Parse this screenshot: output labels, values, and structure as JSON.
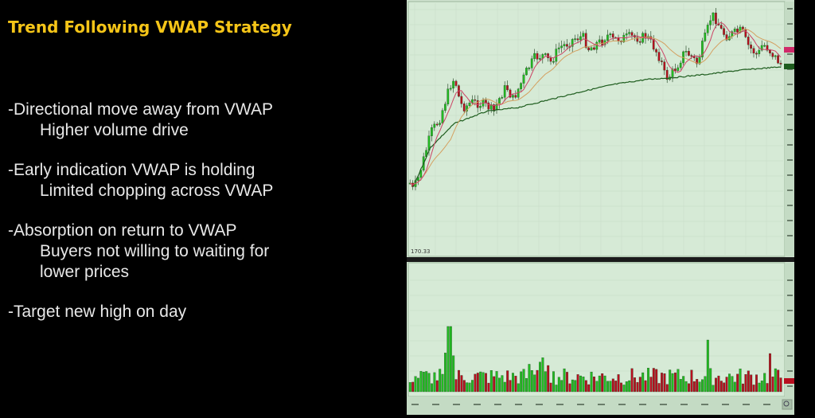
{
  "slide": {
    "title": "Trend Following VWAP Strategy",
    "bullets": [
      {
        "main": "-Directional move away from VWAP",
        "sub": [
          "Higher volume drive"
        ]
      },
      {
        "main": "-Early indication VWAP is holding",
        "sub": [
          "Limited chopping across VWAP"
        ]
      },
      {
        "main": "-Absorption on return to VWAP",
        "sub": [
          "Buyers not willing to waiting for",
          "lower prices"
        ]
      },
      {
        "main": "-Target new high on day",
        "sub": []
      }
    ]
  },
  "chart": {
    "price_readout": "170.33",
    "colors": {
      "up": "#22bb22",
      "down": "#b80f1f",
      "vwap": "#1d5c1d",
      "ma_fast": "#cc4466",
      "ma_slow": "#d4a060",
      "bg": "#cfe3cf"
    }
  }
}
